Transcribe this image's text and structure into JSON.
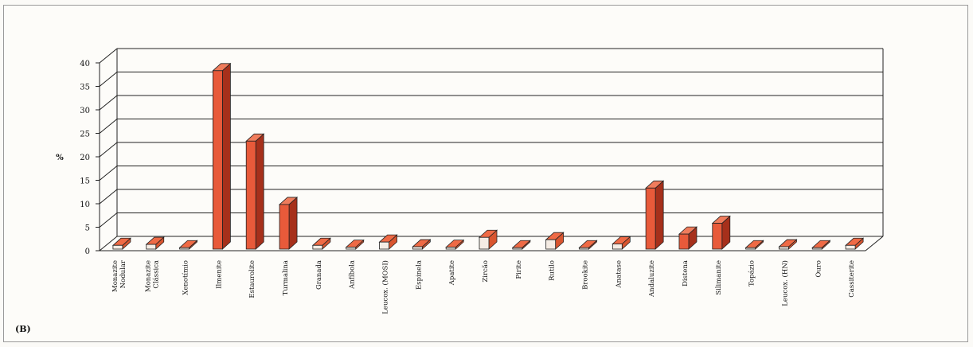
{
  "panel_label": "(B)",
  "chart_data": {
    "type": "bar",
    "style": "3d-column",
    "ylabel": "%",
    "ylim": [
      0,
      40
    ],
    "yticks": [
      0,
      5,
      10,
      15,
      20,
      25,
      30,
      35,
      40
    ],
    "grid": true,
    "legend": "none",
    "categories": [
      "Monazite Nodular",
      "Monazite Clássica",
      "Xenotímio",
      "Ilmenite",
      "Estaurolite",
      "Turmalina",
      "Granada",
      "Anfíbola",
      "Leucox. (MOSI)",
      "Espinela",
      "Apatite",
      "Zircão",
      "Pirite",
      "Rutilo",
      "Brookite",
      "Anatase",
      "Andaluzite",
      "Distena",
      "Silimanite",
      "Topázio",
      "Leucox. (HN)",
      "Ouro",
      "Cassiterite"
    ],
    "values": [
      0.8,
      1.0,
      0.3,
      38,
      23,
      9.5,
      0.8,
      0.4,
      1.5,
      0.5,
      0.4,
      2.5,
      0.3,
      2.0,
      0.3,
      1.1,
      13,
      3.2,
      5.5,
      0.3,
      0.5,
      0.3,
      0.8
    ],
    "colors": {
      "bar_front": "#e85a3a",
      "bar_side": "#a6301b",
      "bar_top": "#f07c5c",
      "bar_small": "#f5ece4",
      "grid": "#222222"
    }
  }
}
